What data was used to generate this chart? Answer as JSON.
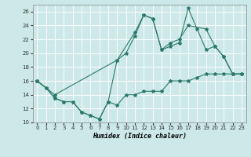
{
  "xlabel": "Humidex (Indice chaleur)",
  "xlim": [
    -0.5,
    23.5
  ],
  "ylim": [
    10,
    27
  ],
  "xticks": [
    0,
    1,
    2,
    3,
    4,
    5,
    6,
    7,
    8,
    9,
    10,
    11,
    12,
    13,
    14,
    15,
    16,
    17,
    18,
    19,
    20,
    21,
    22,
    23
  ],
  "yticks": [
    10,
    12,
    14,
    16,
    18,
    20,
    22,
    24,
    26
  ],
  "bg_color": "#cce8e8",
  "grid_color": "#b8d8d8",
  "line_color": "#2a7a6a",
  "line1_x": [
    0,
    1,
    2,
    3,
    4,
    5,
    6,
    7,
    8,
    9,
    10,
    11,
    12,
    13,
    14,
    15,
    16,
    17,
    18,
    19,
    20,
    21,
    22,
    23
  ],
  "line1_y": [
    16,
    15,
    13.5,
    13,
    13,
    11.5,
    11,
    10.5,
    13,
    12.5,
    14,
    14,
    14.5,
    14.5,
    14.5,
    16,
    16,
    16,
    16.5,
    17,
    17,
    17,
    17,
    17
  ],
  "line2_x": [
    0,
    1,
    2,
    3,
    4,
    5,
    6,
    7,
    8,
    9,
    10,
    11,
    12,
    13,
    14,
    15,
    16,
    17,
    18,
    19,
    20,
    21,
    22,
    23
  ],
  "line2_y": [
    16,
    15,
    13.5,
    13,
    13,
    11.5,
    11,
    10.5,
    13,
    19,
    20,
    22.5,
    25.5,
    25,
    20.5,
    21,
    21.5,
    26.5,
    23.5,
    20.5,
    21,
    19.5,
    17,
    17
  ],
  "line3_x": [
    0,
    2,
    9,
    11,
    12,
    13,
    14,
    15,
    16,
    17,
    19,
    20,
    21,
    22,
    23
  ],
  "line3_y": [
    16,
    14,
    19,
    23,
    25.5,
    25,
    20.5,
    21.5,
    22,
    24,
    23.5,
    21,
    19.5,
    17,
    17
  ]
}
